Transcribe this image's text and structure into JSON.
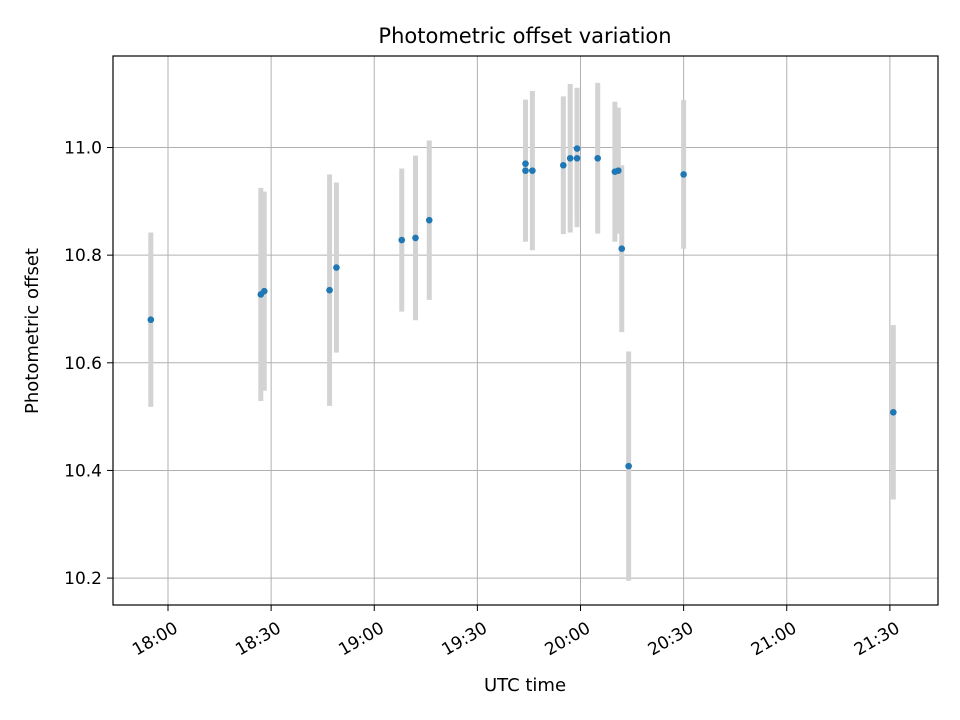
{
  "chart_data": {
    "type": "scatter",
    "title": "Photometric offset variation",
    "xlabel": "UTC time",
    "ylabel": "Photometric offset",
    "x_unit": "UTC time (HH:MM)",
    "xlim": [
      "17:44",
      "21:44"
    ],
    "ylim": [
      10.15,
      11.17
    ],
    "x_ticks": [
      "18:00",
      "18:30",
      "19:00",
      "19:30",
      "20:00",
      "20:30",
      "21:00",
      "21:30"
    ],
    "y_ticks": [
      "10.2",
      "10.4",
      "10.6",
      "10.8",
      "11.0"
    ],
    "grid": true,
    "legend": "none",
    "error_bars": true,
    "series": [
      {
        "points": [
          {
            "x": "17:55",
            "y": 10.68,
            "err": 0.162
          },
          {
            "x": "18:27",
            "y": 10.727,
            "err": 0.198
          },
          {
            "x": "18:28",
            "y": 10.733,
            "err": 0.185
          },
          {
            "x": "18:47",
            "y": 10.735,
            "err": 0.215
          },
          {
            "x": "18:49",
            "y": 10.777,
            "err": 0.158
          },
          {
            "x": "19:08",
            "y": 10.828,
            "err": 0.133
          },
          {
            "x": "19:12",
            "y": 10.832,
            "err": 0.153
          },
          {
            "x": "19:16",
            "y": 10.865,
            "err": 0.148
          },
          {
            "x": "19:44",
            "y": 10.97,
            "err": 0.118
          },
          {
            "x": "19:44",
            "y": 10.957,
            "err": 0.132
          },
          {
            "x": "19:46",
            "y": 10.957,
            "err": 0.148
          },
          {
            "x": "19:55",
            "y": 10.967,
            "err": 0.128
          },
          {
            "x": "19:57",
            "y": 10.98,
            "err": 0.138
          },
          {
            "x": "19:59",
            "y": 10.98,
            "err": 0.128
          },
          {
            "x": "19:59",
            "y": 10.998,
            "err": 0.113
          },
          {
            "x": "20:05",
            "y": 10.98,
            "err": 0.14
          },
          {
            "x": "20:10",
            "y": 10.955,
            "err": 0.13
          },
          {
            "x": "20:11",
            "y": 10.957,
            "err": 0.117
          },
          {
            "x": "20:12",
            "y": 10.812,
            "err": 0.155
          },
          {
            "x": "20:14",
            "y": 10.408,
            "err": 0.213
          },
          {
            "x": "20:30",
            "y": 10.95,
            "err": 0.138
          },
          {
            "x": "21:31",
            "y": 10.508,
            "err": 0.162
          }
        ]
      }
    ],
    "colors": {
      "point": "#1f77b4",
      "errorbar": "#d3d3d3",
      "grid": "#b0b0b0",
      "axes": "#000000"
    }
  }
}
